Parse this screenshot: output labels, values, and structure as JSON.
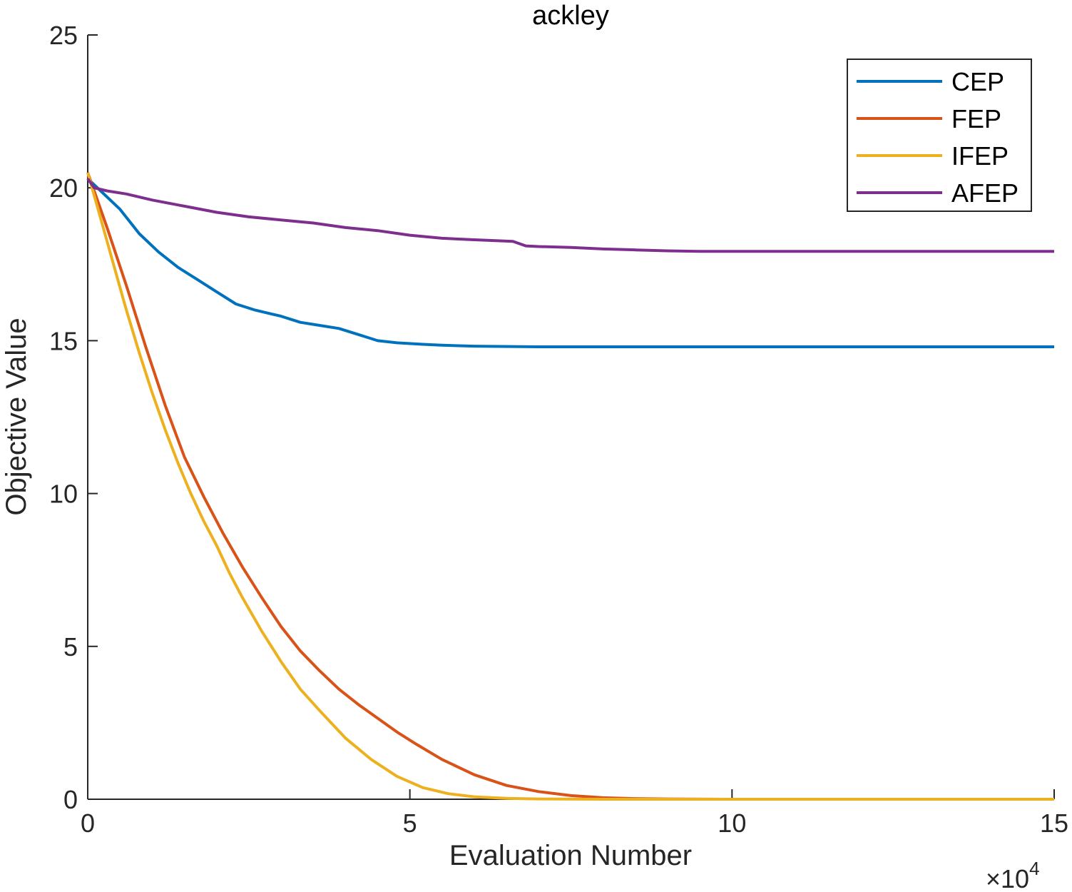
{
  "chart_data": {
    "type": "line",
    "title": "ackley",
    "xlabel": "Evaluation Number",
    "ylabel": "Objective Value",
    "x_multiplier": "×10",
    "x_multiplier_exp": "4",
    "xlim": [
      0,
      150000
    ],
    "ylim": [
      0,
      25
    ],
    "xticks": [
      0,
      50000,
      100000,
      150000
    ],
    "xtick_labels": [
      "0",
      "5",
      "10",
      "15"
    ],
    "yticks": [
      0,
      5,
      10,
      15,
      20,
      25
    ],
    "ytick_labels": [
      "0",
      "5",
      "10",
      "15",
      "20",
      "25"
    ],
    "grid": false,
    "legend_position": "top-right",
    "series": [
      {
        "name": "CEP",
        "color": "#0072BD",
        "x": [
          0,
          2000,
          5000,
          8000,
          11000,
          14000,
          17000,
          20000,
          23000,
          26000,
          30000,
          33000,
          36000,
          39000,
          42000,
          45000,
          48000,
          52000,
          55000,
          60000,
          70000,
          80000,
          100000,
          150000
        ],
        "y": [
          20.3,
          19.9,
          19.3,
          18.5,
          17.9,
          17.4,
          17.0,
          16.6,
          16.2,
          16.0,
          15.8,
          15.6,
          15.5,
          15.4,
          15.2,
          15.0,
          14.93,
          14.88,
          14.85,
          14.82,
          14.8,
          14.8,
          14.8,
          14.8
        ]
      },
      {
        "name": "FEP",
        "color": "#D95319",
        "x": [
          0,
          3000,
          6000,
          9000,
          12000,
          15000,
          18000,
          21000,
          24000,
          27000,
          30000,
          33000,
          36000,
          39000,
          42000,
          45000,
          48000,
          51000,
          55000,
          60000,
          65000,
          70000,
          75000,
          80000,
          85000,
          90000,
          100000,
          150000
        ],
        "y": [
          20.5,
          18.7,
          16.8,
          14.8,
          12.9,
          11.2,
          9.9,
          8.7,
          7.6,
          6.6,
          5.65,
          4.85,
          4.2,
          3.6,
          3.1,
          2.65,
          2.2,
          1.8,
          1.3,
          0.8,
          0.45,
          0.25,
          0.12,
          0.05,
          0.02,
          0.01,
          0.0,
          0.0
        ]
      },
      {
        "name": "IFEP",
        "color": "#EDB120",
        "x": [
          0,
          2000,
          4000,
          6000,
          8000,
          10000,
          12000,
          14000,
          16000,
          18000,
          20000,
          22000,
          24000,
          27000,
          30000,
          33000,
          36000,
          40000,
          44000,
          48000,
          52000,
          56000,
          60000,
          65000,
          70000,
          80000,
          150000
        ],
        "y": [
          20.5,
          19.0,
          17.5,
          16.0,
          14.6,
          13.3,
          12.1,
          11.0,
          10.0,
          9.1,
          8.3,
          7.4,
          6.6,
          5.5,
          4.5,
          3.6,
          2.9,
          2.0,
          1.3,
          0.75,
          0.38,
          0.18,
          0.08,
          0.03,
          0.01,
          0.0,
          0.0
        ]
      },
      {
        "name": "AFEP",
        "color": "#7E2F8E",
        "x": [
          0,
          1000,
          3000,
          6000,
          10000,
          15000,
          20000,
          25000,
          30000,
          35000,
          40000,
          45000,
          50000,
          55000,
          60000,
          66000,
          68000,
          70000,
          75000,
          80000,
          85000,
          90000,
          95000,
          100000,
          120000,
          150000
        ],
        "y": [
          20.3,
          20.0,
          19.9,
          19.8,
          19.6,
          19.4,
          19.2,
          19.05,
          18.95,
          18.85,
          18.7,
          18.6,
          18.45,
          18.35,
          18.3,
          18.25,
          18.1,
          18.08,
          18.05,
          18.0,
          17.97,
          17.94,
          17.92,
          17.92,
          17.92,
          17.92
        ]
      }
    ]
  }
}
